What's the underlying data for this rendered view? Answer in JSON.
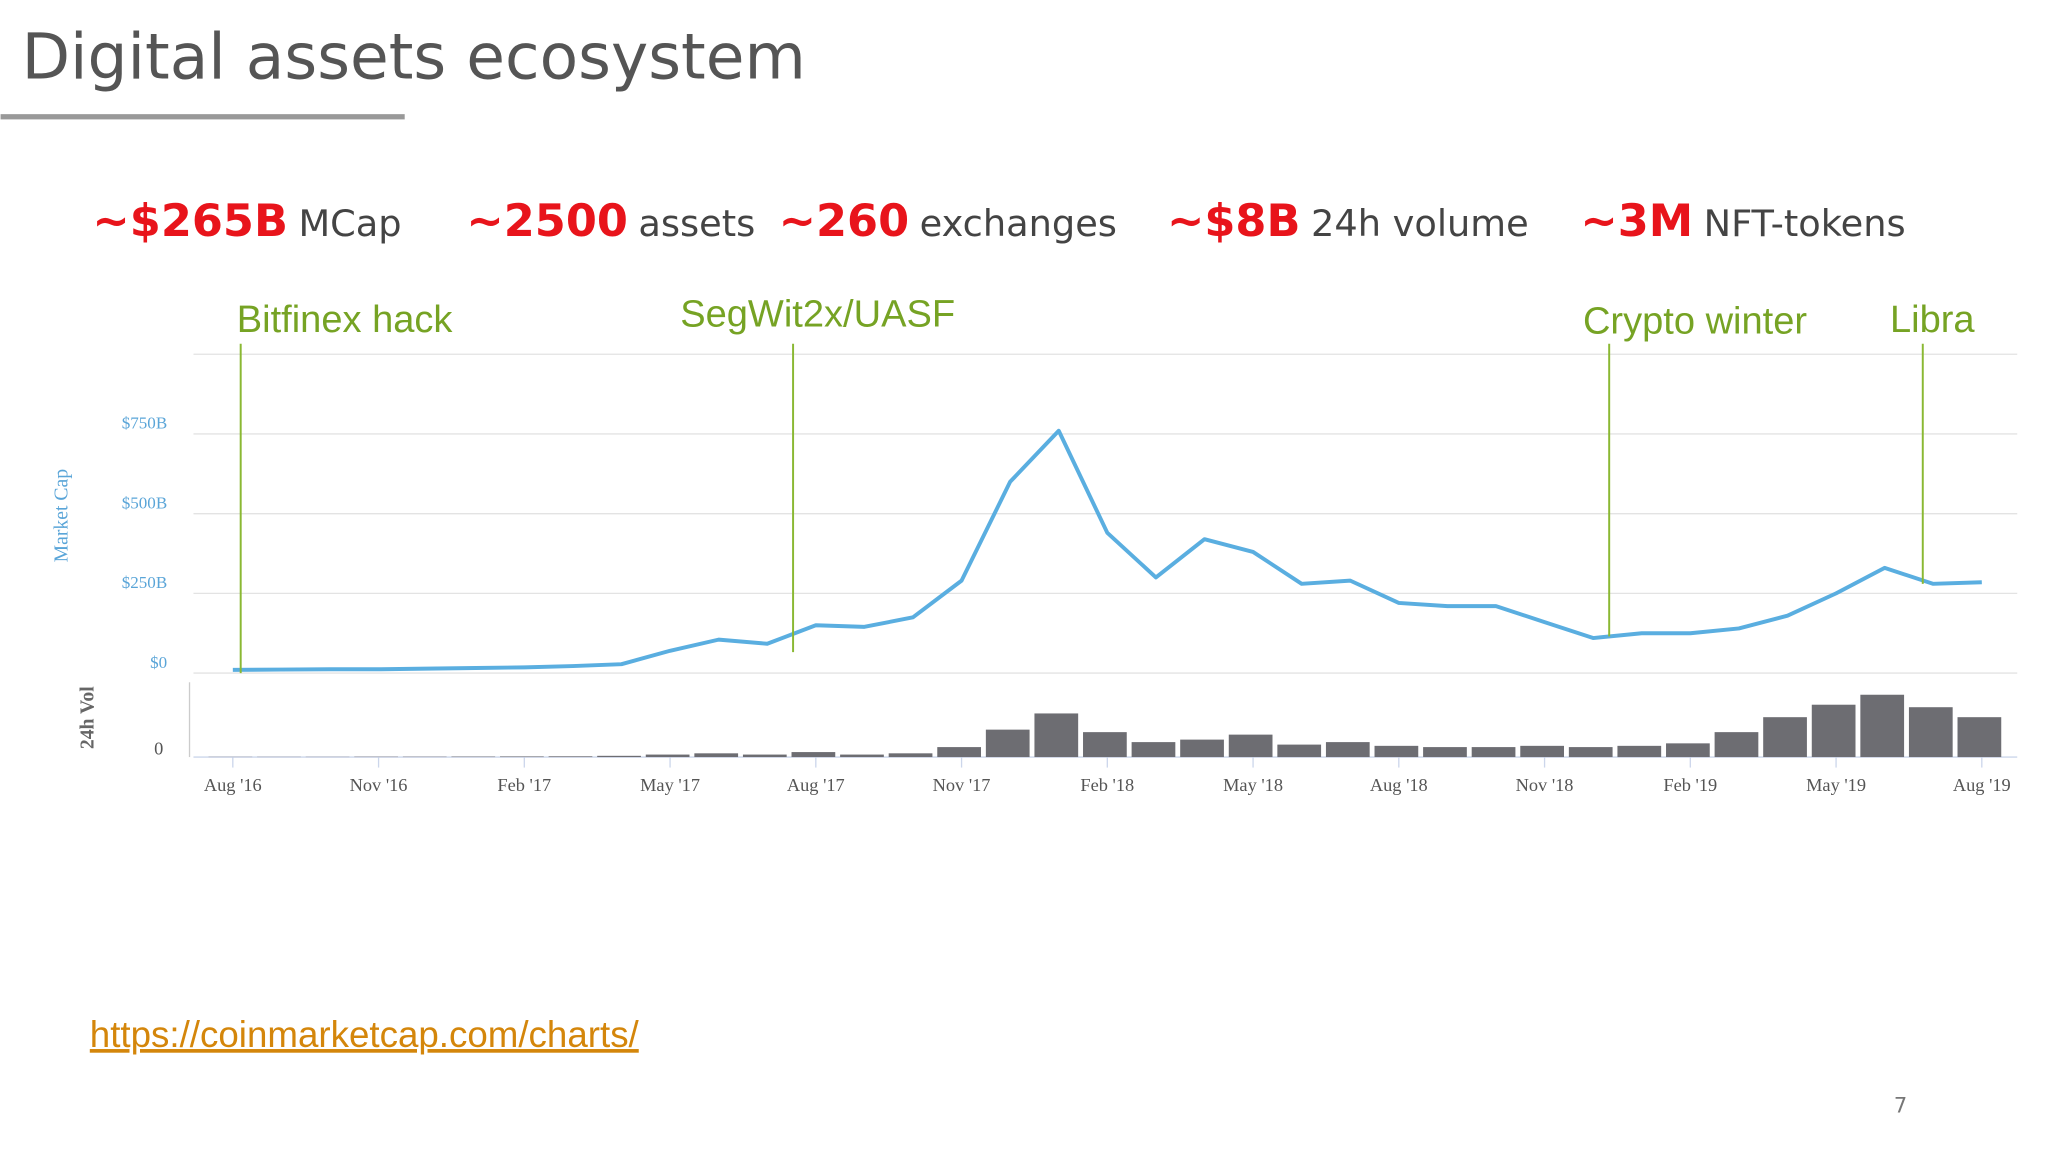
{
  "header": {
    "title": "Digital assets ecosystem"
  },
  "stats": [
    {
      "value": "~$265B",
      "label": "MCap"
    },
    {
      "value": "~2500",
      "label": "assets"
    },
    {
      "value": "~260",
      "label": "exchanges"
    },
    {
      "value": "~$8B",
      "label": "24h volume"
    },
    {
      "value": "~3M",
      "label": "NFT-tokens"
    }
  ],
  "annotations": [
    "Bitfinex hack",
    "SegWit2x/UASF",
    "Crypto winter",
    "Libra"
  ],
  "chart_data": {
    "type": "line",
    "y_label": "Market Cap",
    "y2_label": "24h Vol",
    "categories": [
      "Aug '16",
      null,
      null,
      "Nov '16",
      null,
      null,
      "Feb '17",
      null,
      null,
      "May '17",
      null,
      null,
      "Aug '17",
      null,
      null,
      "Nov '17",
      null,
      null,
      "Feb '18",
      null,
      null,
      "May '18",
      null,
      null,
      "Aug '18",
      null,
      null,
      "Nov '18",
      null,
      null,
      "Feb '19",
      null,
      null,
      "May '19",
      null,
      null,
      "Aug '19"
    ],
    "series": [
      {
        "name": "Market Cap",
        "color": "#5aaee0",
        "values": [
          10,
          11,
          12,
          12,
          14,
          16,
          18,
          22,
          28,
          70,
          105,
          92,
          150,
          145,
          175,
          290,
          600,
          760,
          440,
          300,
          420,
          380,
          280,
          290,
          220,
          210,
          210,
          160,
          110,
          125,
          125,
          140,
          180,
          250,
          330,
          280,
          285
        ]
      },
      {
        "name": "24h Vol",
        "color": "#6d6d72",
        "axis": "y2",
        "values": [
          0.2,
          0.2,
          0.2,
          0.3,
          0.3,
          0.4,
          0.5,
          0.6,
          1,
          2,
          3,
          2,
          4,
          2,
          3,
          8,
          22,
          35,
          20,
          12,
          14,
          18,
          10,
          12,
          9,
          8,
          8,
          9,
          8,
          9,
          11,
          20,
          32,
          42,
          50,
          40,
          32
        ]
      }
    ],
    "ylim": [
      0,
      1000
    ],
    "yticks": [
      {
        "value": 0,
        "label": "$0"
      },
      {
        "value": 250,
        "label": "$250B"
      },
      {
        "value": 500,
        "label": "$500B"
      },
      {
        "value": 750,
        "label": "$750B"
      }
    ],
    "y2lim": [
      0,
      60
    ],
    "y2ticks": [
      0
    ],
    "grid": true
  },
  "footer": {
    "link": "https://coinmarketcap.com/charts/",
    "page": "7"
  }
}
